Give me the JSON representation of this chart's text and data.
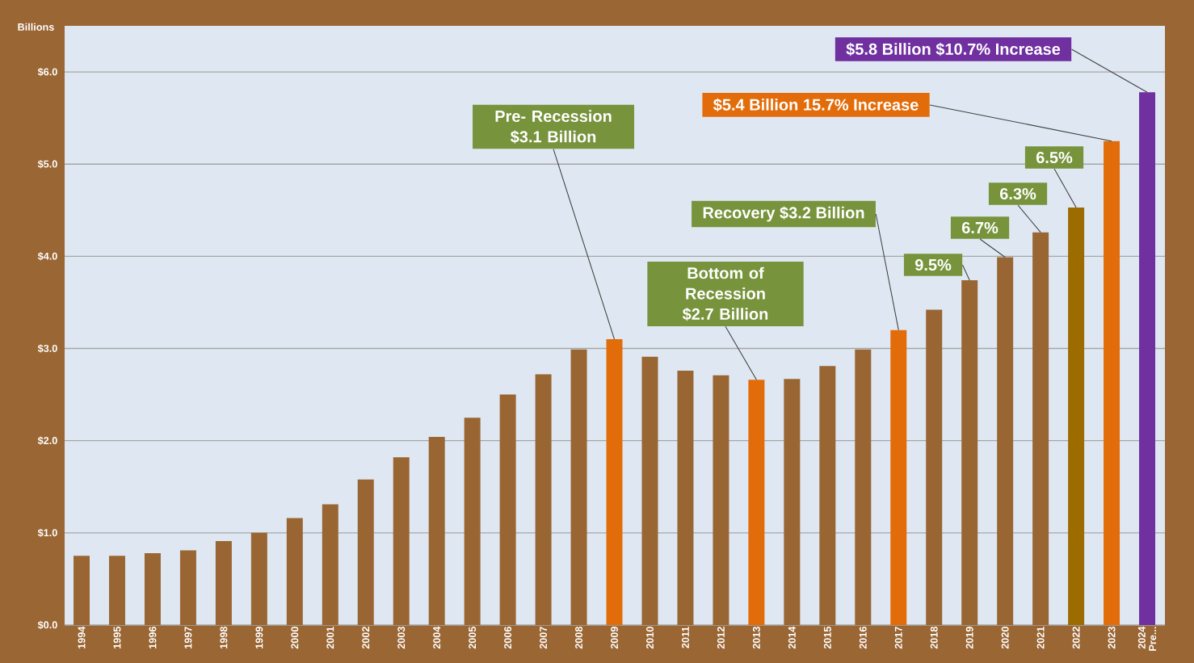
{
  "chart_data": {
    "type": "bar",
    "ylabel": "Billions",
    "categories": [
      "1994",
      "1995",
      "1996",
      "1997",
      "1998",
      "1999",
      "2000",
      "2001",
      "2002",
      "2003",
      "2004",
      "2005",
      "2006",
      "2007",
      "2008",
      "2009",
      "2010",
      "2011",
      "2012",
      "2013",
      "2014",
      "2015",
      "2016",
      "2017",
      "2018",
      "2019",
      "2020",
      "2021",
      "2022",
      "2023",
      "2024 Pre..."
    ],
    "values": [
      0.75,
      0.75,
      0.78,
      0.81,
      0.91,
      1.0,
      1.16,
      1.31,
      1.58,
      1.82,
      2.04,
      2.25,
      2.5,
      2.72,
      2.99,
      3.1,
      2.91,
      2.76,
      2.71,
      2.66,
      2.67,
      2.81,
      2.99,
      3.2,
      3.42,
      3.74,
      3.99,
      4.26,
      4.53,
      5.25,
      5.78
    ],
    "colors": [
      "#996633",
      "#996633",
      "#996633",
      "#996633",
      "#996633",
      "#996633",
      "#996633",
      "#996633",
      "#996633",
      "#996633",
      "#996633",
      "#996633",
      "#996633",
      "#996633",
      "#996633",
      "#e36c0a",
      "#996633",
      "#996633",
      "#996633",
      "#e36c0a",
      "#996633",
      "#996633",
      "#996633",
      "#e36c0a",
      "#996633",
      "#996633",
      "#996633",
      "#996633",
      "#9c6c00",
      "#e36c0a",
      "#7030a0"
    ],
    "ylim": [
      0,
      6.5
    ],
    "yticks": [
      {
        "value": 0,
        "label": "$0.0"
      },
      {
        "value": 1,
        "label": "$1.0"
      },
      {
        "value": 2,
        "label": "$2.0"
      },
      {
        "value": 3,
        "label": "$3.0"
      },
      {
        "value": 4,
        "label": "$4.0"
      },
      {
        "value": 5,
        "label": "$5.0"
      },
      {
        "value": 6,
        "label": "$6.0"
      }
    ],
    "grid": "y",
    "annotations": [
      {
        "text": "Pre- Recession $3.1 Billion",
        "x": "2009",
        "y": 3.1
      },
      {
        "text": "Bottom of Recession $2.7 Billion",
        "x": "2013",
        "y": 2.66
      },
      {
        "text": "Recovery $3.2 Billion",
        "x": "2017",
        "y": 3.2
      },
      {
        "text": "9.5%",
        "x": "2019",
        "y": 3.74
      },
      {
        "text": "6.7%",
        "x": "2020",
        "y": 3.99
      },
      {
        "text": "6.3%",
        "x": "2021",
        "y": 4.26
      },
      {
        "text": "6.5%",
        "x": "2022",
        "y": 4.53
      },
      {
        "text": "$5.4 Billion 15.7% Increase",
        "x": "2023",
        "y": 5.25
      },
      {
        "text": "$5.8 Billion $10.7% Increase",
        "x": "2024 Pre...",
        "y": 5.78
      }
    ]
  }
}
